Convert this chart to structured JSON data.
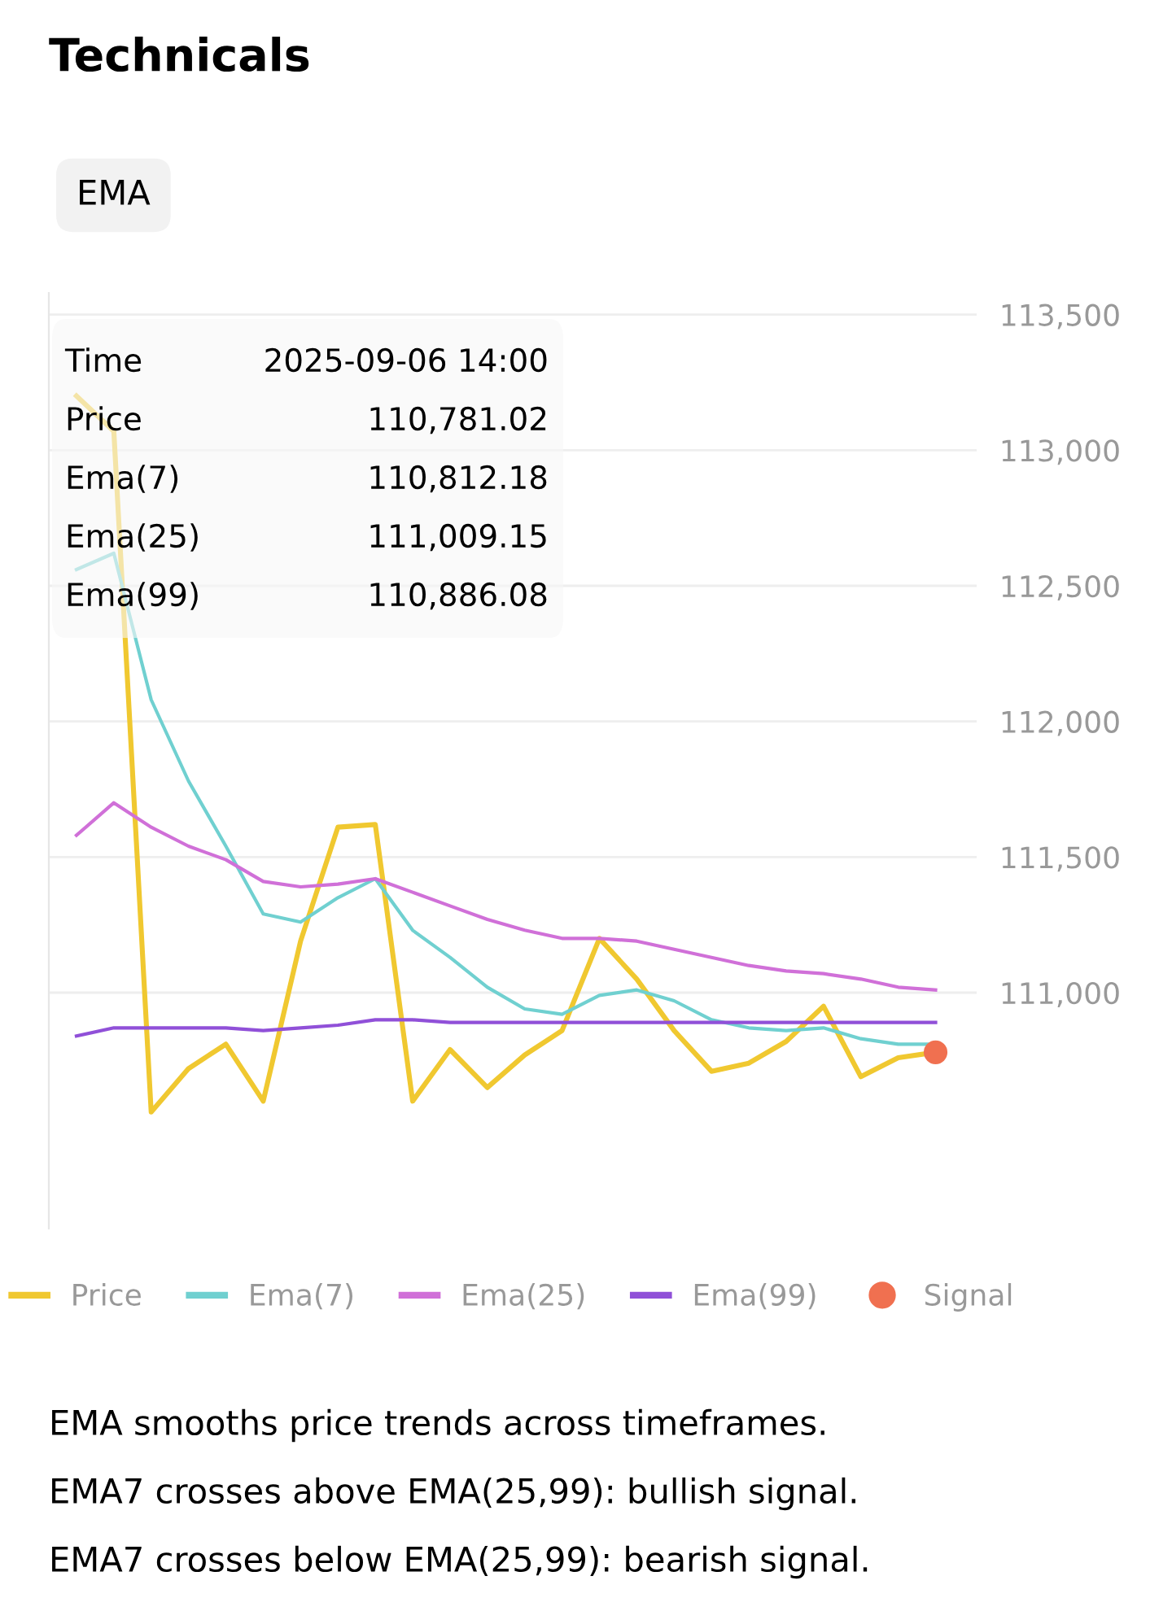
{
  "chart_data": {
    "type": "line",
    "title": "Technicals",
    "subtitle": "EMA",
    "categories": [
      null,
      null,
      null,
      null,
      null,
      null,
      null,
      null,
      null,
      null,
      null,
      null,
      null,
      null,
      null,
      null,
      null,
      null,
      null,
      null,
      null,
      null,
      null,
      null
    ],
    "series": [
      {
        "name": "Price",
        "color": "#f0c830",
        "values": [
          113200,
          113070,
          110560,
          110720,
          110810,
          110600,
          111190,
          111610,
          111620,
          110600,
          110790,
          110650,
          110770,
          110860,
          111200,
          111050,
          110860,
          110710,
          110740,
          110820,
          110950,
          110690,
          110760,
          110780
        ]
      },
      {
        "name": "Ema(7)",
        "color": "#70d0d0",
        "values": [
          112560,
          112620,
          112080,
          111780,
          111540,
          111290,
          111260,
          111350,
          111420,
          111230,
          111130,
          111020,
          110940,
          110920,
          110990,
          111010,
          110970,
          110900,
          110870,
          110860,
          110870,
          110830,
          110810,
          110810
        ]
      },
      {
        "name": "Ema(25)",
        "color": "#d070d8",
        "values": [
          111580,
          111700,
          111610,
          111540,
          111490,
          111410,
          111390,
          111400,
          111420,
          111370,
          111320,
          111270,
          111230,
          111200,
          111200,
          111190,
          111160,
          111130,
          111100,
          111080,
          111070,
          111050,
          111020,
          111010
        ]
      },
      {
        "name": "Ema(99)",
        "color": "#9050d8",
        "values": [
          110840,
          110870,
          110870,
          110870,
          110870,
          110860,
          110870,
          110880,
          110900,
          110900,
          110890,
          110890,
          110890,
          110890,
          110890,
          110890,
          110890,
          110890,
          110890,
          110890,
          110890,
          110890,
          110890,
          110890
        ]
      },
      {
        "name": "Signal",
        "type": "scatter",
        "color": "#f07050",
        "marker": "circle",
        "values": [
          null,
          null,
          null,
          null,
          null,
          null,
          null,
          null,
          null,
          null,
          null,
          null,
          null,
          null,
          null,
          null,
          null,
          null,
          null,
          null,
          null,
          null,
          null,
          110780
        ]
      }
    ],
    "ylim": [
      110130,
      113580
    ],
    "yticks": [
      {
        "value": 111000,
        "label": "111,000"
      },
      {
        "value": 111500,
        "label": "111,500"
      },
      {
        "value": 112000,
        "label": "112,000"
      },
      {
        "value": 112500,
        "label": "112,500"
      },
      {
        "value": 113000,
        "label": "113,000"
      },
      {
        "value": 113500,
        "label": "113,500"
      }
    ],
    "grid": "y",
    "legend": "bottom",
    "tick_labels": "y",
    "annotations": [
      "Time",
      "2025-09-06 14:00",
      "Price",
      "110,781.02",
      "Ema(7)",
      "110,812.18",
      "Ema(25)",
      "111,009.15",
      "Ema(99)",
      "110,886.08",
      "EMA smooths price trends across timeframes.",
      "EMA7 crosses above EMA(25,99): bullish signal.",
      "EMA7 crosses below EMA(25,99): bearish signal."
    ]
  }
}
